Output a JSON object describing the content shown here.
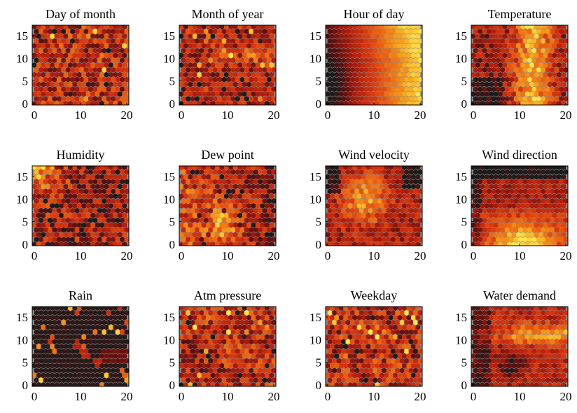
{
  "figure": {
    "layout": "3x4 grid of SOM component planes",
    "colormap": [
      "#1c1c1c",
      "#5a1010",
      "#a81a0c",
      "#d8360e",
      "#ee6a12",
      "#f9a71e",
      "#fde54a"
    ],
    "hex_grid": "21 x 17 hexagonal cells"
  },
  "chart_data": [
    {
      "type": "heatmap",
      "title": "Day of month",
      "xlim": [
        0,
        20
      ],
      "ylim": [
        0,
        17
      ],
      "xticks": [
        "0",
        "10",
        "20"
      ],
      "yticks": [
        "0",
        "5",
        "10",
        "15"
      ],
      "pattern": "uniform-noise"
    },
    {
      "type": "heatmap",
      "title": "Month of year",
      "xlim": [
        0,
        20
      ],
      "ylim": [
        0,
        17
      ],
      "xticks": [
        "0",
        "10",
        "20"
      ],
      "yticks": [
        "0",
        "5",
        "10",
        "15"
      ],
      "pattern": "banded-noise"
    },
    {
      "type": "heatmap",
      "title": "Hour of day",
      "xlim": [
        0,
        20
      ],
      "ylim": [
        0,
        17
      ],
      "xticks": [
        "0",
        "10",
        "20"
      ],
      "yticks": [
        "0",
        "5",
        "10",
        "15"
      ],
      "pattern": "gradient-left-dark-right-bright"
    },
    {
      "type": "heatmap",
      "title": "Temperature",
      "xlim": [
        0,
        20
      ],
      "ylim": [
        0,
        17
      ],
      "xticks": [
        "0",
        "10",
        "20"
      ],
      "yticks": [
        "0",
        "5",
        "10",
        "15"
      ],
      "pattern": "bright-center-right"
    },
    {
      "type": "heatmap",
      "title": "Humidity",
      "xlim": [
        0,
        20
      ],
      "ylim": [
        0,
        17
      ],
      "xticks": [
        "0",
        "10",
        "20"
      ],
      "yticks": [
        "0",
        "5",
        "10",
        "15"
      ],
      "pattern": "bright-top-left"
    },
    {
      "type": "heatmap",
      "title": "Dew point",
      "xlim": [
        0,
        20
      ],
      "ylim": [
        0,
        17
      ],
      "xticks": [
        "0",
        "10",
        "20"
      ],
      "yticks": [
        "0",
        "5",
        "10",
        "15"
      ],
      "pattern": "bright-left-bands"
    },
    {
      "type": "heatmap",
      "title": "Wind velocity",
      "xlim": [
        0,
        20
      ],
      "ylim": [
        0,
        17
      ],
      "xticks": [
        "0",
        "10",
        "20"
      ],
      "yticks": [
        "0",
        "5",
        "10",
        "15"
      ],
      "pattern": "dark-edges-bright-center"
    },
    {
      "type": "heatmap",
      "title": "Wind direction",
      "xlim": [
        0,
        20
      ],
      "ylim": [
        0,
        17
      ],
      "xticks": [
        "0",
        "10",
        "20"
      ],
      "yticks": [
        "0",
        "5",
        "10",
        "15"
      ],
      "pattern": "dark-top-bright-bottom"
    },
    {
      "type": "heatmap",
      "title": "Rain",
      "xlim": [
        0,
        20
      ],
      "ylim": [
        0,
        17
      ],
      "xticks": [
        "0",
        "10",
        "20"
      ],
      "yticks": [
        "0",
        "5",
        "10",
        "15"
      ],
      "pattern": "mostly-dark"
    },
    {
      "type": "heatmap",
      "title": "Atm pressure",
      "xlim": [
        0,
        20
      ],
      "ylim": [
        0,
        17
      ],
      "xticks": [
        "0",
        "10",
        "20"
      ],
      "yticks": [
        "0",
        "5",
        "10",
        "15"
      ],
      "pattern": "uniform-noise"
    },
    {
      "type": "heatmap",
      "title": "Weekday",
      "xlim": [
        0,
        20
      ],
      "ylim": [
        0,
        17
      ],
      "xticks": [
        "0",
        "10",
        "20"
      ],
      "yticks": [
        "0",
        "5",
        "10",
        "15"
      ],
      "pattern": "uniform-noise"
    },
    {
      "type": "heatmap",
      "title": "Water demand",
      "xlim": [
        0,
        20
      ],
      "ylim": [
        0,
        17
      ],
      "xticks": [
        "0",
        "10",
        "20"
      ],
      "yticks": [
        "0",
        "5",
        "10",
        "15"
      ],
      "pattern": "dark-left-bright-band"
    }
  ]
}
